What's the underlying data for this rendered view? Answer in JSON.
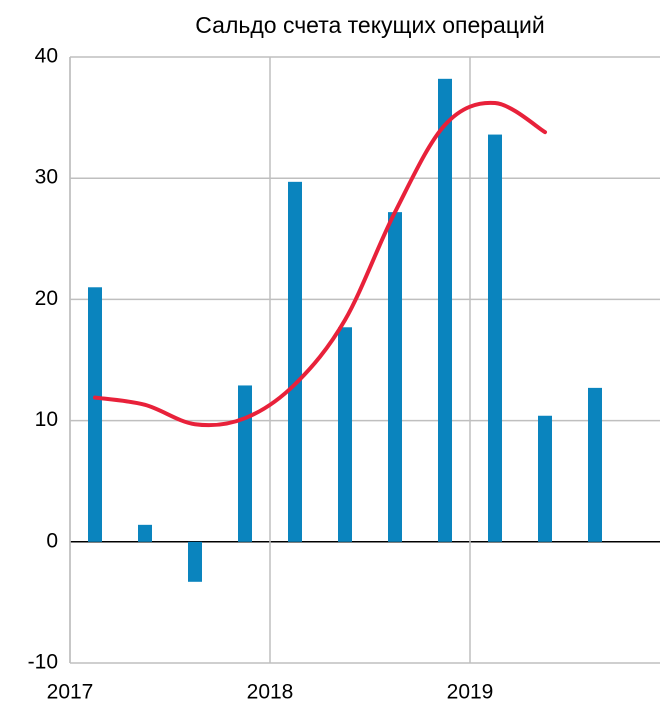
{
  "chart_data": {
    "type": "bar",
    "title": "Сальдо счета текущих операций",
    "xlim": [
      2017,
      2019.95
    ],
    "xticks": [
      2017,
      2018,
      2019
    ],
    "ylim": [
      -10,
      40
    ],
    "yticks": [
      -10,
      0,
      10,
      20,
      30,
      40
    ],
    "grid": true,
    "series": [
      {
        "type": "bar",
        "color": "#0a84be",
        "x": [
          2017.125,
          2017.375,
          2017.625,
          2017.875,
          2018.125,
          2018.375,
          2018.625,
          2018.875,
          2019.125,
          2019.375,
          2019.625
        ],
        "values": [
          21.0,
          1.4,
          -3.3,
          12.9,
          29.7,
          17.7,
          27.2,
          38.2,
          33.6,
          10.4,
          12.7
        ]
      },
      {
        "type": "line",
        "color": "#e8213a",
        "x": [
          2017.125,
          2017.375,
          2017.625,
          2017.875,
          2018.125,
          2018.375,
          2018.625,
          2018.875,
          2019.125,
          2019.375
        ],
        "values": [
          11.9,
          11.3,
          9.7,
          10.2,
          13.0,
          18.3,
          27.2,
          34.4,
          36.2,
          33.8
        ]
      }
    ]
  }
}
